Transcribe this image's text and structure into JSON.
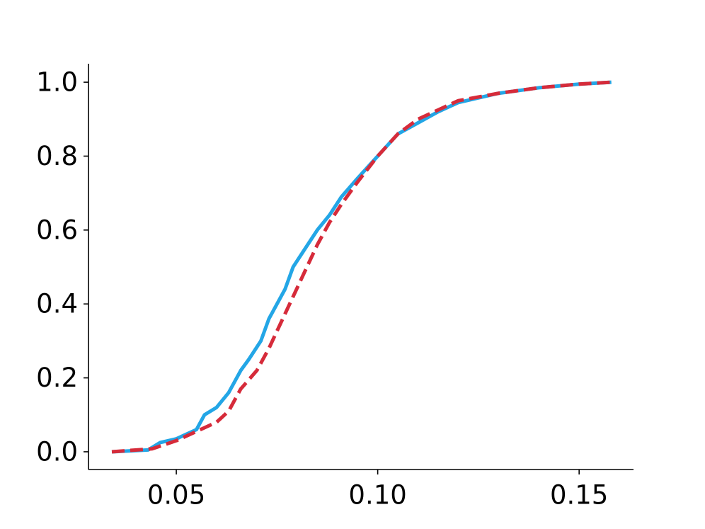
{
  "chart_data": {
    "type": "line",
    "xlim": [
      0.0282,
      0.1635
    ],
    "ylim": [
      -0.048,
      1.05
    ],
    "xticks": [
      0.05,
      {
        "value": 0.1,
        "label": "0.10"
      },
      0.15
    ],
    "yticks": [
      {
        "value": 0,
        "label": "0.0"
      },
      0.2,
      0.4,
      0.6,
      0.8,
      {
        "value": 1,
        "label": "1.0"
      }
    ],
    "grid": false,
    "series": [
      {
        "color": "#23a6e6",
        "dash": "solid",
        "x": [
          0.034,
          0.043,
          0.046,
          0.05,
          0.055,
          0.057,
          0.06,
          0.063,
          0.066,
          0.068,
          0.071,
          0.073,
          0.075,
          0.077,
          0.079,
          0.082,
          0.085,
          0.088,
          0.091,
          0.095,
          0.1,
          0.105,
          0.11,
          0.115,
          0.12,
          0.13,
          0.14,
          0.15,
          0.158
        ],
        "values": [
          0,
          0.005,
          0.025,
          0.035,
          0.06,
          0.1,
          0.12,
          0.16,
          0.22,
          0.25,
          0.3,
          0.36,
          0.4,
          0.44,
          0.5,
          0.55,
          0.6,
          0.64,
          0.69,
          0.74,
          0.8,
          0.86,
          0.89,
          0.92,
          0.945,
          0.97,
          0.985,
          0.995,
          1.0
        ]
      },
      {
        "color": "#d62b3a",
        "dash": "dashed",
        "x": [
          0.034,
          0.044,
          0.05,
          0.055,
          0.06,
          0.063,
          0.066,
          0.07,
          0.073,
          0.076,
          0.079,
          0.082,
          0.085,
          0.088,
          0.091,
          0.095,
          0.1,
          0.105,
          0.11,
          0.115,
          0.12,
          0.13,
          0.14,
          0.15,
          0.158
        ],
        "values": [
          0,
          0.008,
          0.03,
          0.055,
          0.08,
          0.11,
          0.17,
          0.22,
          0.28,
          0.35,
          0.42,
          0.49,
          0.56,
          0.62,
          0.67,
          0.73,
          0.8,
          0.86,
          0.9,
          0.925,
          0.95,
          0.97,
          0.985,
          0.995,
          1.0
        ]
      }
    ]
  }
}
